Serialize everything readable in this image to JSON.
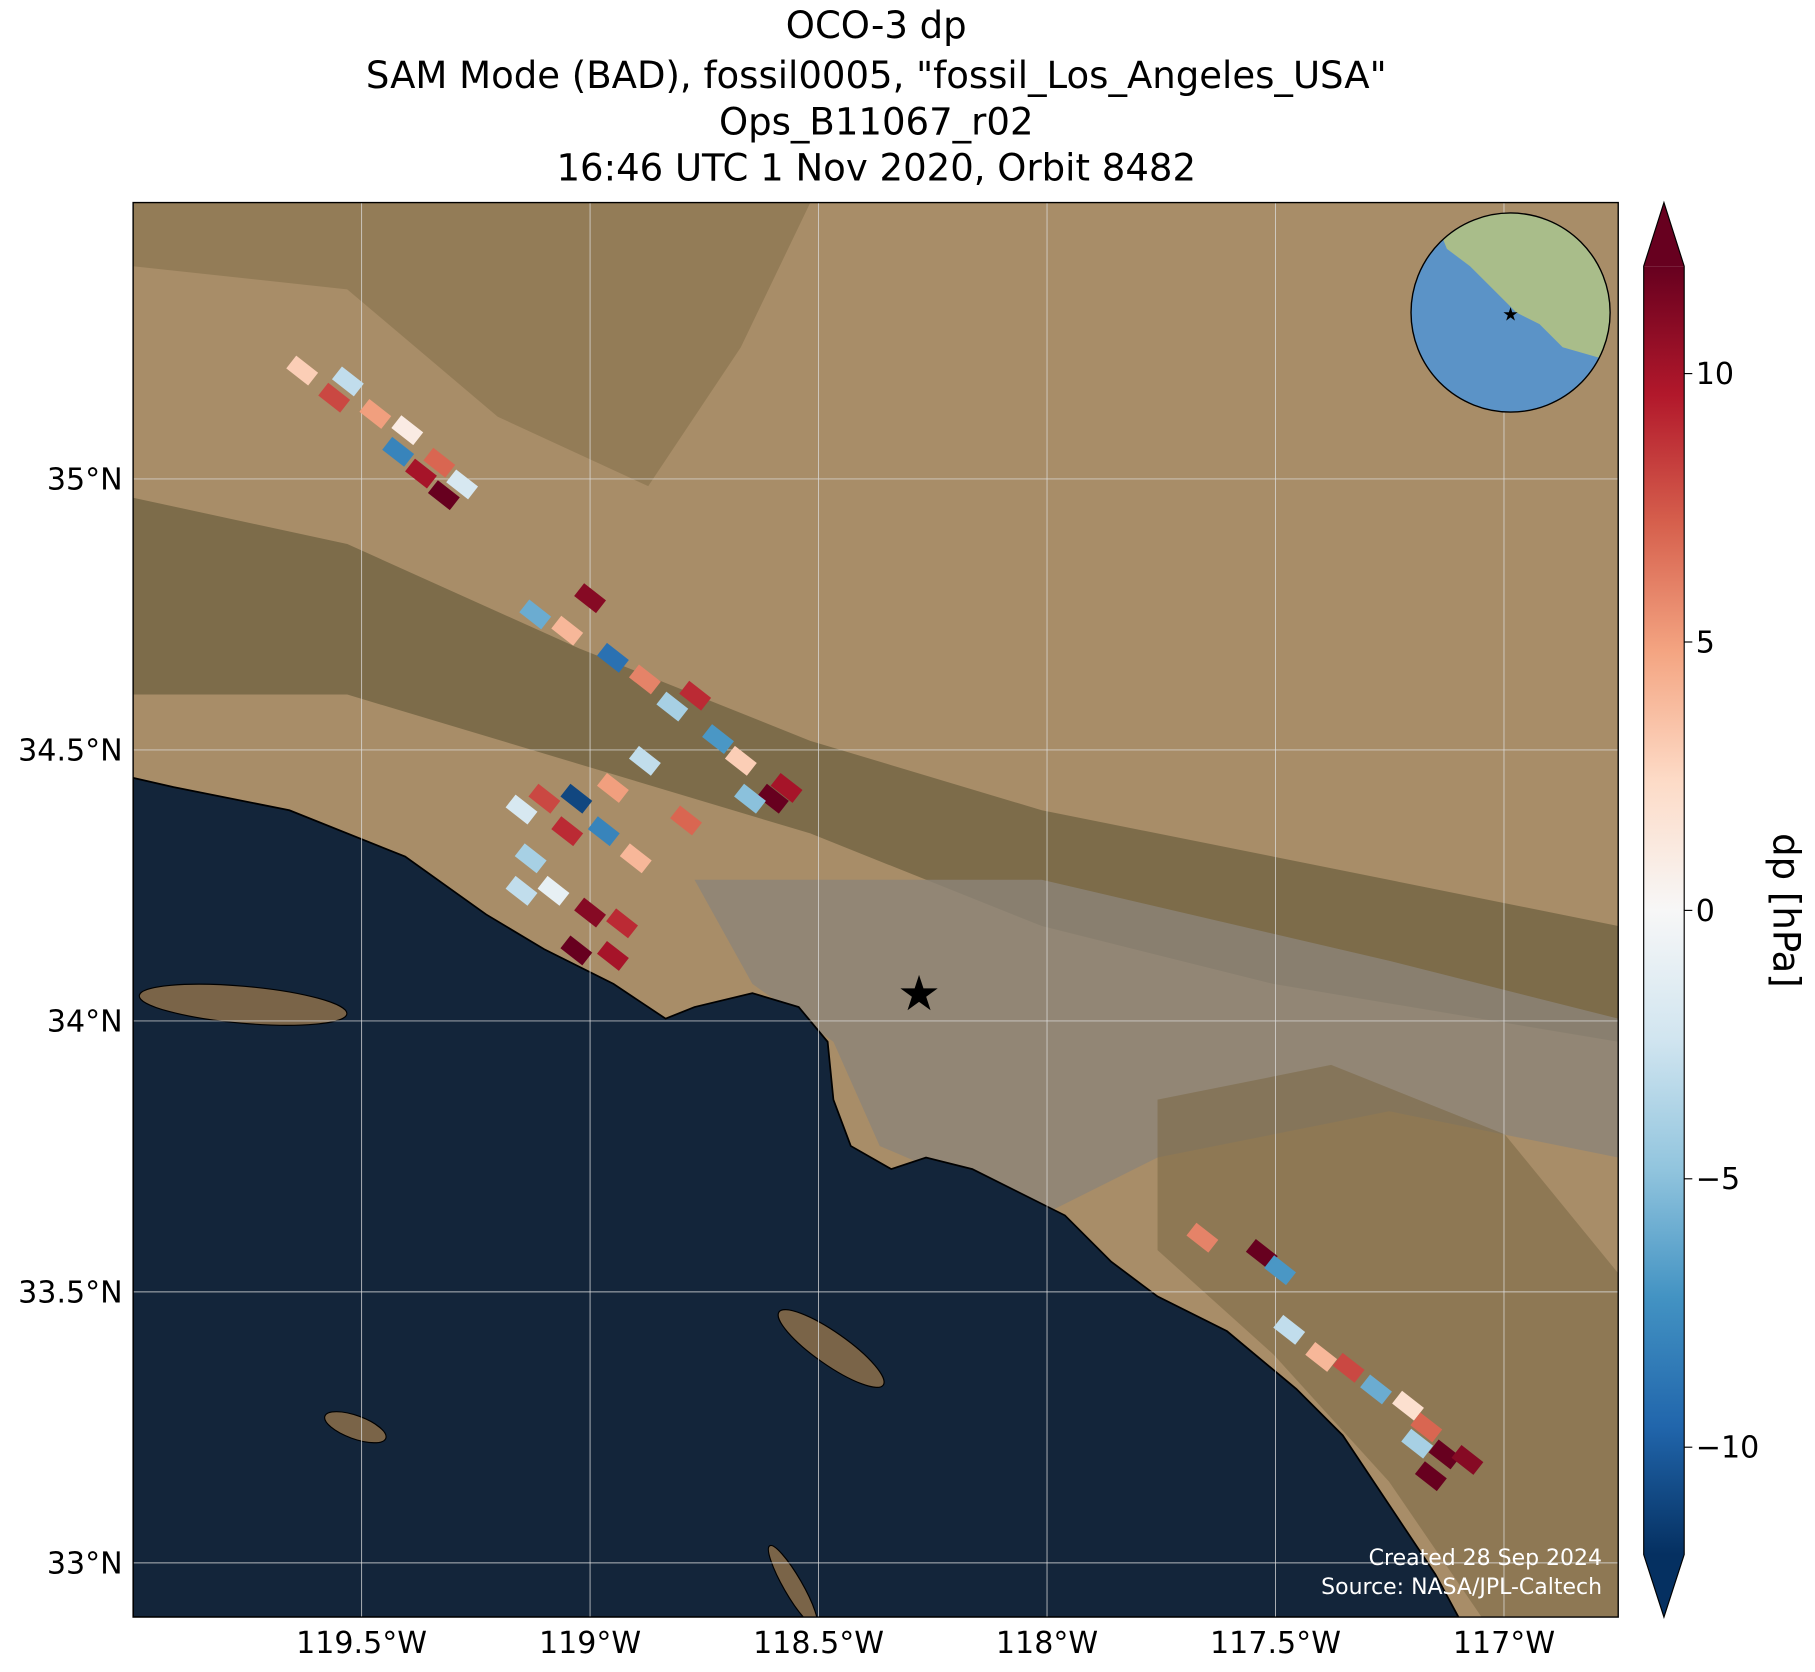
{
  "chart_data": {
    "type": "map",
    "title": [
      "OCO-3 dp",
      "SAM Mode (BAD), fossil0005, \"fossil_Los_Angeles_USA\"",
      "Ops_B11067_r02",
      "16:46 UTC 1 Nov 2020, Orbit 8482"
    ],
    "xlim": [
      -120,
      -116.75
    ],
    "ylim": [
      32.9,
      35.51
    ],
    "xticks": [
      {
        "value": -119.5,
        "label": "119.5°W"
      },
      {
        "value": -119,
        "label": "119°W"
      },
      {
        "value": -118.5,
        "label": "118.5°W"
      },
      {
        "value": -118,
        "label": "118°W"
      },
      {
        "value": -117.5,
        "label": "117.5°W"
      },
      {
        "value": -117,
        "label": "117°W"
      }
    ],
    "yticks": [
      {
        "value": 33,
        "label": "33°N"
      },
      {
        "value": 33.5,
        "label": "33.5°N"
      },
      {
        "value": 34,
        "label": "34°N"
      },
      {
        "value": 34.5,
        "label": "34.5°N"
      },
      {
        "value": 35,
        "label": "35°N"
      }
    ],
    "grid": true,
    "colorbar": {
      "label": "dp [hPa]",
      "vlim": [
        -12,
        12
      ],
      "ticks": [
        {
          "value": -10,
          "label": "−10"
        },
        {
          "value": -5,
          "label": "−5"
        },
        0,
        5,
        10
      ],
      "colors": [
        "#053061",
        "#2166ac",
        "#4393c3",
        "#92c5de",
        "#d1e5f0",
        "#f7f7f7",
        "#fddbc7",
        "#f4a582",
        "#d6604d",
        "#b2182b",
        "#67001f"
      ]
    },
    "soundings": {
      "lon": [
        -119.63,
        -119.56,
        -119.53,
        -119.47,
        -119.42,
        -119.37,
        -119.32,
        -119.28,
        -119.33,
        -119.4,
        -119.12,
        -119.05,
        -119.0,
        -118.95,
        -118.88,
        -118.82,
        -118.77,
        -118.72,
        -118.67,
        -118.6,
        -118.57,
        -118.65,
        -119.15,
        -119.1,
        -119.03,
        -118.95,
        -118.88,
        -118.79,
        -119.13,
        -119.05,
        -118.97,
        -118.9,
        -119.15,
        -119.08,
        -119.0,
        -118.93,
        -119.03,
        -118.95,
        -117.66,
        -117.53,
        -117.49,
        -117.47,
        -117.4,
        -117.34,
        -117.28,
        -117.21,
        -117.17,
        -117.13,
        -117.08,
        -117.19,
        -117.16
      ],
      "lat": [
        35.2,
        35.15,
        35.18,
        35.12,
        35.05,
        35.01,
        34.97,
        34.99,
        35.03,
        35.09,
        34.75,
        34.72,
        34.78,
        34.67,
        34.63,
        34.58,
        34.6,
        34.52,
        34.48,
        34.41,
        34.43,
        34.41,
        34.39,
        34.41,
        34.41,
        34.43,
        34.48,
        34.37,
        34.3,
        34.35,
        34.35,
        34.3,
        34.24,
        34.24,
        34.2,
        34.18,
        34.13,
        34.12,
        33.6,
        33.57,
        33.54,
        33.43,
        33.38,
        33.36,
        33.32,
        33.29,
        33.25,
        33.2,
        33.19,
        33.22,
        33.16
      ],
      "dp": [
        3,
        8,
        -3,
        5,
        -8,
        10,
        12,
        -2,
        7,
        1,
        -6,
        4,
        11,
        -9,
        6,
        -4,
        9,
        -7,
        3,
        12,
        10,
        -5,
        -2,
        8,
        -11,
        5,
        -3,
        7,
        -4,
        9,
        -8,
        4,
        -3,
        -1,
        11,
        9,
        12,
        10,
        6,
        12,
        -7,
        -3,
        4,
        8,
        -6,
        2,
        7,
        12,
        11,
        -4,
        12
      ]
    },
    "target": {
      "lon": -118.28,
      "lat": 34.05
    },
    "credits": [
      "Created 28 Sep 2024",
      "Source: NASA/JPL-Caltech"
    ]
  }
}
